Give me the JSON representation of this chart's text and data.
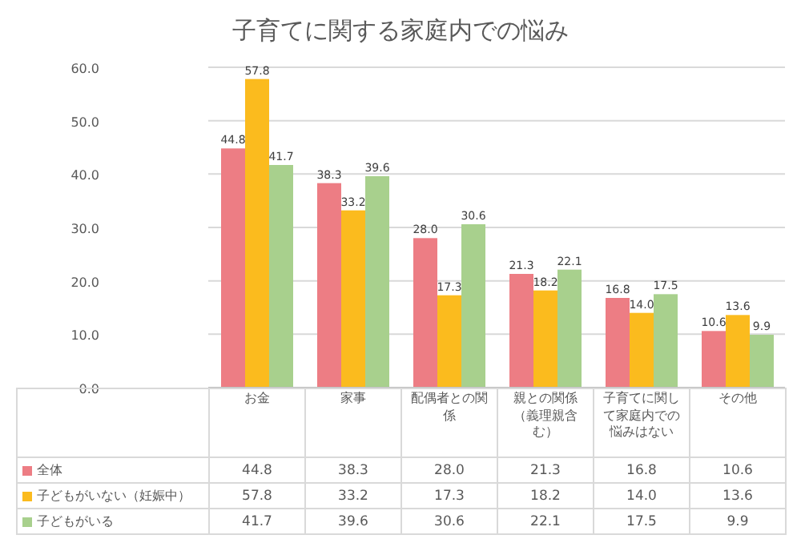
{
  "chart_data": {
    "type": "bar",
    "title": "子育てに関する家庭内での悩み",
    "categories": [
      "お金",
      "家事",
      "配偶者との関係",
      "親との関係（義理親含む）",
      "子育てに関して家庭内での悩みはない",
      "その他"
    ],
    "series": [
      {
        "name": "全体",
        "color": "#ed7d84",
        "values": [
          44.8,
          38.3,
          28.0,
          21.3,
          16.8,
          10.6
        ],
        "value_labels": [
          "44.8",
          "38.3",
          "28.0",
          "21.3",
          "16.8",
          "10.6"
        ]
      },
      {
        "name": "子どもがいない（妊娠中）",
        "color": "#fbbb1e",
        "values": [
          57.8,
          33.2,
          17.3,
          18.2,
          14.0,
          13.6
        ],
        "value_labels": [
          "57.8",
          "33.2",
          "17.3",
          "18.2",
          "14.0",
          "13.6"
        ]
      },
      {
        "name": "子どもがいる",
        "color": "#a8d08d",
        "values": [
          41.7,
          39.6,
          30.6,
          22.1,
          17.5,
          9.9
        ],
        "value_labels": [
          "41.7",
          "39.6",
          "30.6",
          "22.1",
          "17.5",
          "9.9"
        ]
      }
    ],
    "ylim": [
      0,
      60
    ],
    "yticks": [
      "0.0",
      "10.0",
      "20.0",
      "30.0",
      "40.0",
      "50.0",
      "60.0"
    ],
    "grid": "y",
    "legend": "bottom"
  }
}
